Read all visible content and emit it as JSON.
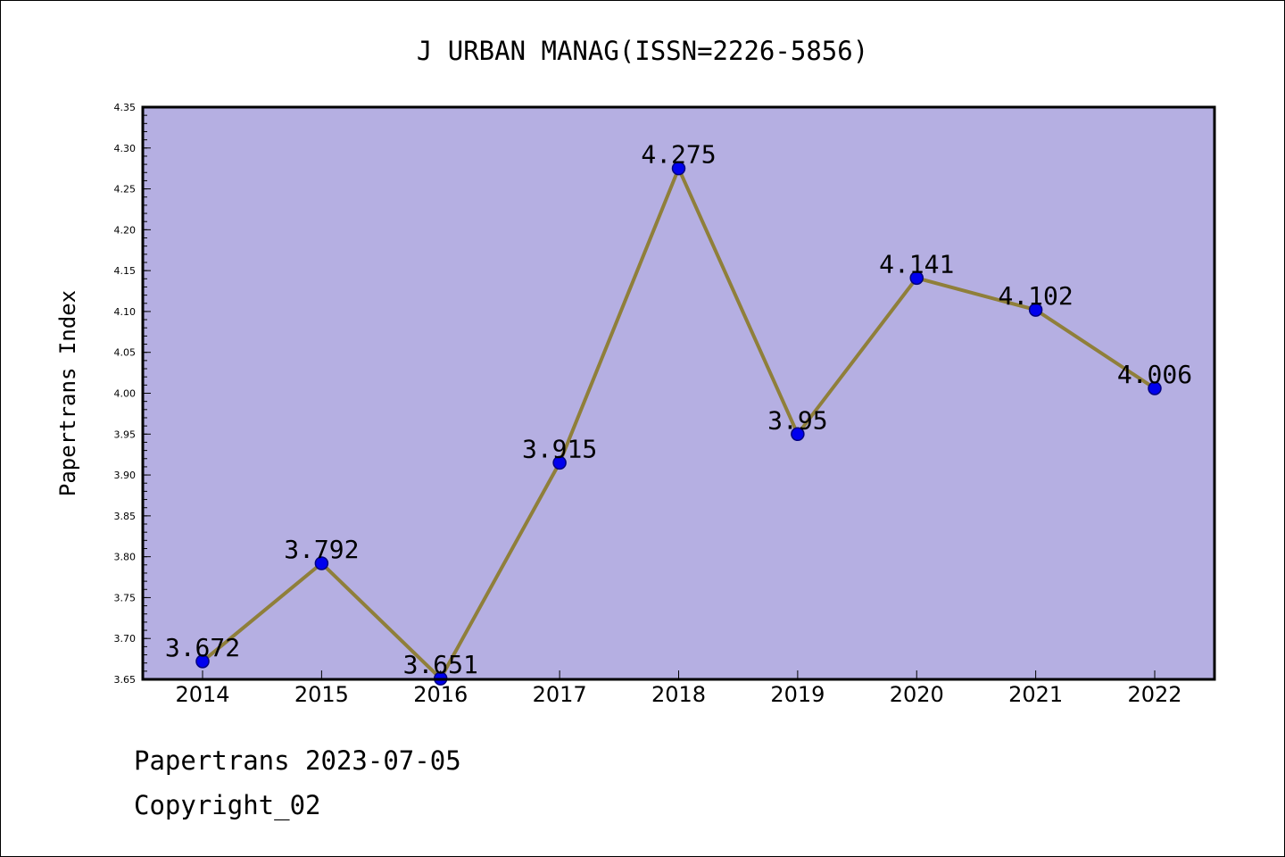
{
  "chart_data": {
    "type": "line",
    "title": "J URBAN MANAG(ISSN=2226-5856)",
    "xlabel": "",
    "ylabel": "Papertrans Index",
    "categories": [
      "2014",
      "2015",
      "2016",
      "2017",
      "2018",
      "2019",
      "2020",
      "2021",
      "2022"
    ],
    "values": [
      3.672,
      3.792,
      3.651,
      3.915,
      4.275,
      3.95,
      4.141,
      4.102,
      4.006
    ],
    "data_labels": [
      "3.672",
      "3.792",
      "3.651",
      "3.915",
      "4.275",
      "3.95",
      "4.141",
      "4.102",
      "4.006"
    ],
    "ylim": [
      3.65,
      4.35
    ],
    "yticks": [
      "3.65",
      "3.70",
      "3.75",
      "3.80",
      "3.85",
      "3.90",
      "3.95",
      "4.00",
      "4.05",
      "4.10",
      "4.15",
      "4.20",
      "4.25",
      "4.30",
      "4.35"
    ],
    "grid": false,
    "legend": "none",
    "colors": {
      "plot_background": "#b5afe2",
      "line": "#8f7f3a",
      "marker": "#0000ee",
      "marker_edge": "#000080"
    }
  },
  "footer": {
    "line1": "Papertrans 2023-07-05",
    "line2": "Copyright_02"
  }
}
